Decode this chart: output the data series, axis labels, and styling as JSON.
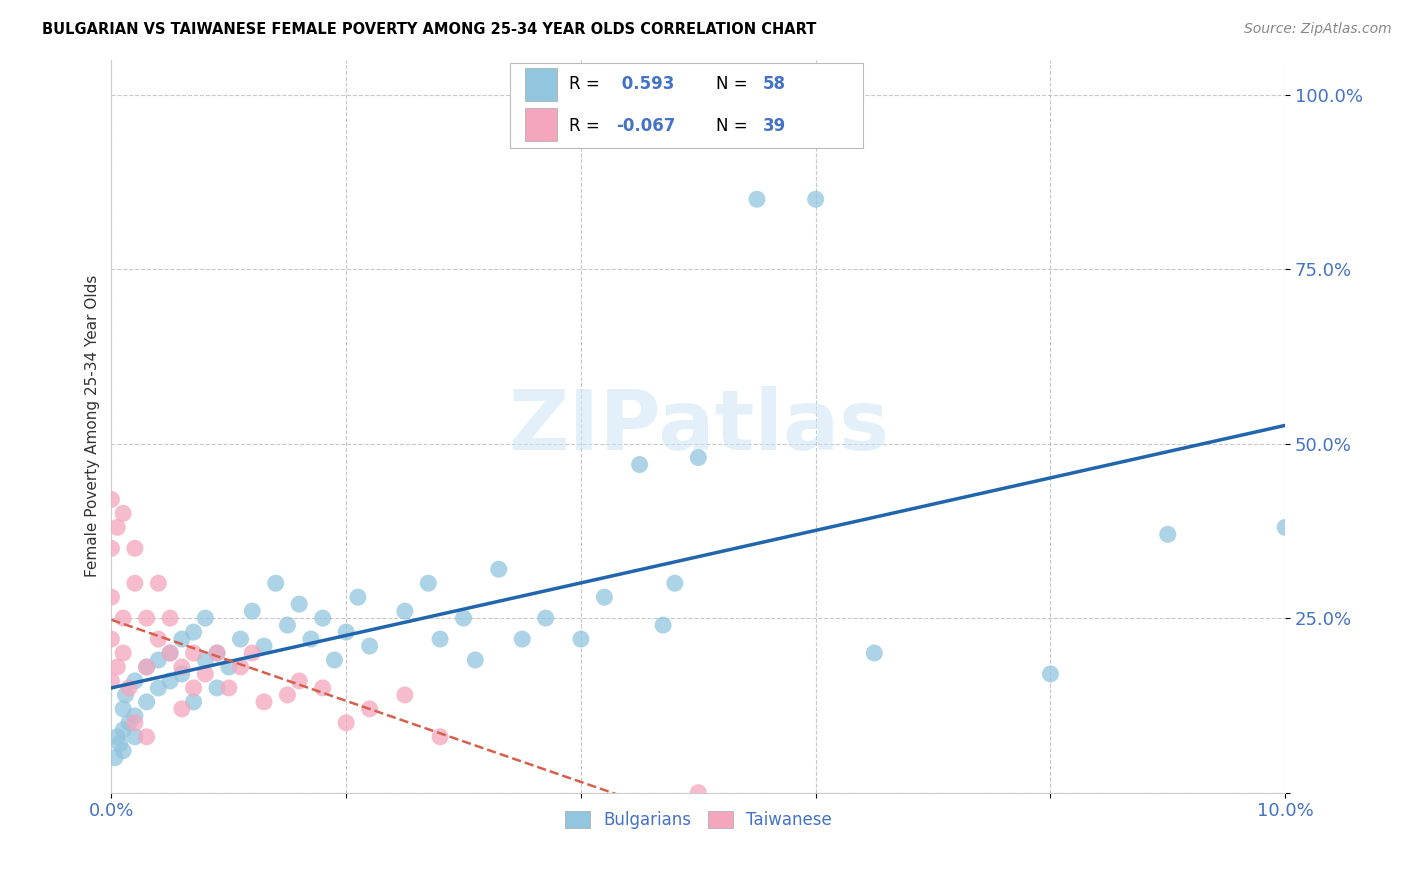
{
  "title": "BULGARIAN VS TAIWANESE FEMALE POVERTY AMONG 25-34 YEAR OLDS CORRELATION CHART",
  "source": "Source: ZipAtlas.com",
  "ylabel": "Female Poverty Among 25-34 Year Olds",
  "xlim": [
    0.0,
    0.1
  ],
  "ylim": [
    0.0,
    1.05
  ],
  "R_bulg": 0.593,
  "N_bulg": 58,
  "R_taiwan": -0.067,
  "N_taiwan": 39,
  "legend_label_bulg": "Bulgarians",
  "legend_label_taiwan": "Taiwanese",
  "bg_color": "#ffffff",
  "blue_color": "#92c5de",
  "blue_line_color": "#2166ac",
  "pink_color": "#f4a6bd",
  "pink_line_color": "#d6604d",
  "axis_label_color": "#4472c4",
  "title_color": "#000000",
  "bulgarians_x": [
    0.0003,
    0.0005,
    0.0007,
    0.001,
    0.001,
    0.001,
    0.0012,
    0.0015,
    0.002,
    0.002,
    0.002,
    0.003,
    0.003,
    0.004,
    0.004,
    0.005,
    0.005,
    0.006,
    0.006,
    0.007,
    0.007,
    0.008,
    0.008,
    0.009,
    0.009,
    0.01,
    0.011,
    0.012,
    0.013,
    0.014,
    0.015,
    0.016,
    0.017,
    0.018,
    0.019,
    0.02,
    0.021,
    0.022,
    0.025,
    0.027,
    0.028,
    0.03,
    0.031,
    0.033,
    0.035,
    0.037,
    0.04,
    0.042,
    0.045,
    0.047,
    0.048,
    0.05,
    0.055,
    0.06,
    0.065,
    0.08,
    0.09,
    0.1
  ],
  "bulgarians_y": [
    0.05,
    0.08,
    0.07,
    0.12,
    0.09,
    0.06,
    0.14,
    0.1,
    0.16,
    0.11,
    0.08,
    0.18,
    0.13,
    0.19,
    0.15,
    0.2,
    0.16,
    0.22,
    0.17,
    0.23,
    0.13,
    0.19,
    0.25,
    0.2,
    0.15,
    0.18,
    0.22,
    0.26,
    0.21,
    0.3,
    0.24,
    0.27,
    0.22,
    0.25,
    0.19,
    0.23,
    0.28,
    0.21,
    0.26,
    0.3,
    0.22,
    0.25,
    0.19,
    0.32,
    0.22,
    0.25,
    0.22,
    0.28,
    0.47,
    0.24,
    0.3,
    0.48,
    0.85,
    0.85,
    0.2,
    0.17,
    0.37,
    0.38
  ],
  "taiwanese_x": [
    0.0,
    0.0,
    0.0,
    0.0,
    0.0,
    0.0005,
    0.0005,
    0.001,
    0.001,
    0.001,
    0.0015,
    0.002,
    0.002,
    0.002,
    0.003,
    0.003,
    0.003,
    0.004,
    0.004,
    0.005,
    0.005,
    0.006,
    0.006,
    0.007,
    0.007,
    0.008,
    0.009,
    0.01,
    0.011,
    0.012,
    0.013,
    0.015,
    0.016,
    0.018,
    0.02,
    0.022,
    0.025,
    0.028,
    0.05
  ],
  "taiwanese_y": [
    0.16,
    0.22,
    0.28,
    0.35,
    0.42,
    0.38,
    0.18,
    0.2,
    0.25,
    0.4,
    0.15,
    0.3,
    0.35,
    0.1,
    0.25,
    0.18,
    0.08,
    0.3,
    0.22,
    0.2,
    0.25,
    0.18,
    0.12,
    0.2,
    0.15,
    0.17,
    0.2,
    0.15,
    0.18,
    0.2,
    0.13,
    0.14,
    0.16,
    0.15,
    0.1,
    0.12,
    0.14,
    0.08,
    0.0
  ]
}
